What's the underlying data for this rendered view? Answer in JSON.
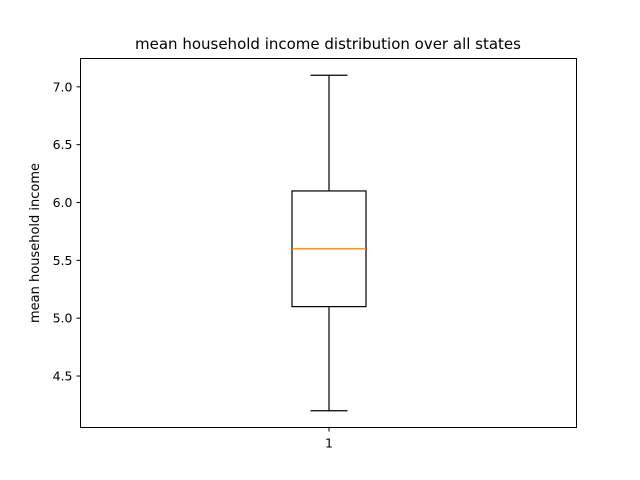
{
  "chart_data": {
    "type": "box",
    "title": "mean household income distribution over all states",
    "xlabel": "",
    "ylabel": "mean household income",
    "categories": [
      "1"
    ],
    "boxes": [
      {
        "category": "1",
        "whisker_low": 4.2,
        "q1": 5.1,
        "median": 5.6,
        "q3": 6.1,
        "whisker_high": 7.1
      }
    ],
    "ylim": [
      4.055,
      7.245
    ],
    "yticks": [
      4.5,
      5.0,
      5.5,
      6.0,
      6.5,
      7.0
    ],
    "ytick_labels": [
      "4.5",
      "5.0",
      "5.5",
      "6.0",
      "6.5",
      "7.0"
    ],
    "grid": false,
    "colors": {
      "box": "#000000",
      "median": "#ff7f0e",
      "axes": "#000000"
    }
  }
}
